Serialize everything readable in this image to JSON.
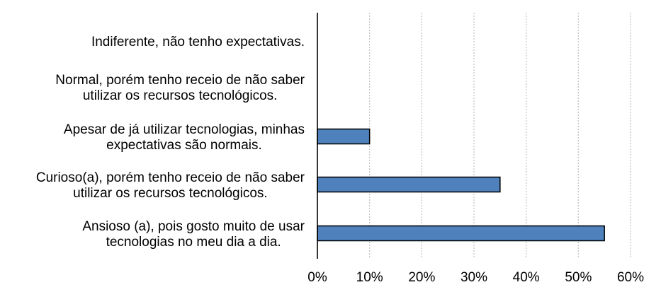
{
  "chart_data": {
    "type": "bar",
    "orientation": "horizontal",
    "categories": [
      [
        "Indiferente, não tenho expectativas."
      ],
      [
        "Normal, porém tenho receio de não saber",
        "utilizar os recursos tecnológicos."
      ],
      [
        "Apesar de já utilizar tecnologias, minhas",
        "expectativas são normais."
      ],
      [
        "Curioso(a), porém tenho receio de não saber",
        "utilizar os recursos tecnológicos."
      ],
      [
        "Ansioso (a), pois gosto muito de usar",
        "tecnologias no meu dia a dia."
      ]
    ],
    "values": [
      0,
      0,
      10,
      35,
      55
    ],
    "xlim": [
      0,
      60
    ],
    "x_ticks": [
      0,
      10,
      20,
      30,
      40,
      50,
      60
    ],
    "x_tick_labels": [
      "0%",
      "10%",
      "20%",
      "30%",
      "40%",
      "50%",
      "60%"
    ],
    "grid": "vertical dashed",
    "bar_color": "#4f81bd",
    "title": "",
    "xlabel": "",
    "ylabel": ""
  }
}
